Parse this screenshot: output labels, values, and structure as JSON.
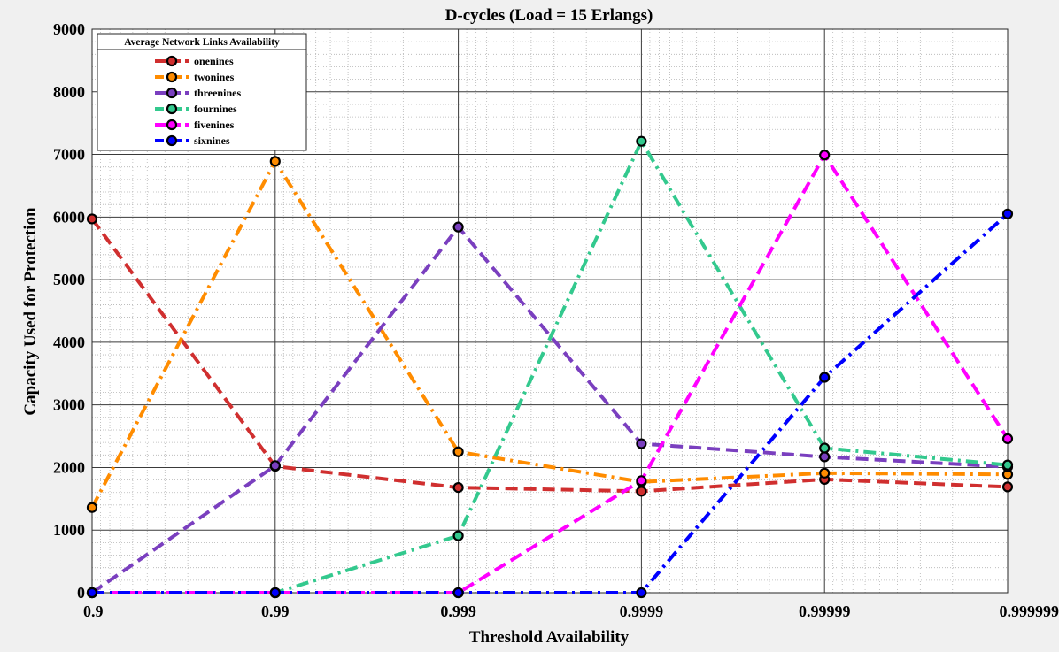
{
  "chart_data": {
    "type": "line",
    "title": "D-cycles (Load  = 15 Erlangs)",
    "xlabel": "Threshold Availability",
    "ylabel": "Capacity Used for Protection",
    "x_scale": "log(1 - x)",
    "x_ticks": [
      "0.9",
      "0.99",
      "0.999",
      "0.9999",
      "0.99999",
      "0.999999"
    ],
    "ylim": [
      0,
      9000
    ],
    "y_ticks": [
      0,
      1000,
      2000,
      3000,
      4000,
      5000,
      6000,
      7000,
      8000,
      9000
    ],
    "grid": "major and minor",
    "legend": {
      "title": "Average Network Links Availability",
      "placement": "top-left"
    },
    "series": [
      {
        "name": "onenines",
        "color": "#d02f2f",
        "dash": "dash",
        "values": [
          5970,
          2020,
          1680,
          1620,
          1810,
          1690
        ]
      },
      {
        "name": "twonines",
        "color": "#ff8c00",
        "dash": "dash-dot",
        "values": [
          1360,
          6890,
          2250,
          1770,
          1910,
          1890
        ]
      },
      {
        "name": "threenines",
        "color": "#7a3fbf",
        "dash": "dash",
        "values": [
          0,
          2030,
          5840,
          2380,
          2170,
          2010
        ]
      },
      {
        "name": "fournines",
        "color": "#33c98e",
        "dash": "dash-dot",
        "values": [
          0,
          0,
          910,
          7210,
          2310,
          2040
        ]
      },
      {
        "name": "fivenines",
        "color": "#ff00ff",
        "dash": "dash",
        "values": [
          0,
          0,
          0,
          1790,
          6990,
          2460
        ]
      },
      {
        "name": "sixnines",
        "color": "#0000ff",
        "dash": "dash-dot",
        "values": [
          0,
          0,
          0,
          0,
          3440,
          6050
        ]
      }
    ]
  }
}
